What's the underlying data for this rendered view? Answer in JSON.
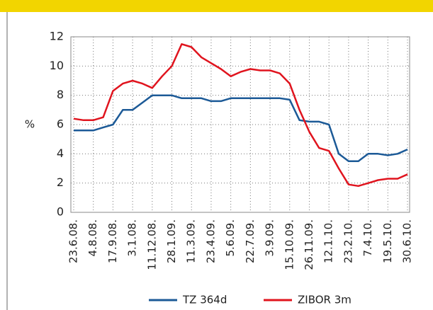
{
  "chart_data": {
    "type": "line",
    "ylabel": "%",
    "categories": [
      "23.6.08.",
      null,
      "4.8.08.",
      null,
      "17.9.08.",
      null,
      "3.1.08.",
      null,
      "11.12.08.",
      null,
      "28.1.09.",
      null,
      "11.3.09.",
      null,
      "23.4.09.",
      null,
      "5.6.09.",
      null,
      "22.7.09.",
      null,
      "3.9.09.",
      null,
      "15.10.09.",
      null,
      "26.11.09.",
      null,
      "12.1.10.",
      null,
      "23.2.10.",
      null,
      "7.4.10.",
      null,
      "19.5.10.",
      null,
      "30.6.10."
    ],
    "series": [
      {
        "name": "TZ 364d",
        "color": "#1c5a97",
        "values": [
          5.6,
          5.6,
          5.6,
          5.8,
          6.0,
          7.0,
          7.0,
          7.5,
          8.0,
          8.0,
          8.0,
          7.8,
          7.8,
          7.8,
          7.6,
          7.6,
          7.8,
          7.8,
          7.8,
          7.8,
          7.8,
          7.8,
          7.7,
          6.3,
          6.2,
          6.2,
          6.0,
          4.0,
          3.5,
          3.5,
          4.0,
          4.0,
          3.9,
          4.0,
          4.3
        ]
      },
      {
        "name": "ZIBOR 3m",
        "color": "#e0141e",
        "values": [
          6.4,
          6.3,
          6.3,
          6.5,
          8.3,
          8.8,
          9.0,
          8.8,
          8.5,
          9.3,
          10.0,
          11.5,
          11.3,
          10.6,
          10.2,
          9.8,
          9.3,
          9.6,
          9.8,
          9.7,
          9.7,
          9.5,
          8.8,
          7.0,
          5.5,
          4.4,
          4.2,
          3.0,
          1.9,
          1.8,
          2.0,
          2.2,
          2.3,
          2.3,
          2.6
        ]
      }
    ],
    "ylim": [
      0,
      12
    ],
    "yticks": [
      0,
      2,
      4,
      6,
      8,
      10,
      12
    ],
    "grid": true,
    "legend": "bottom"
  }
}
